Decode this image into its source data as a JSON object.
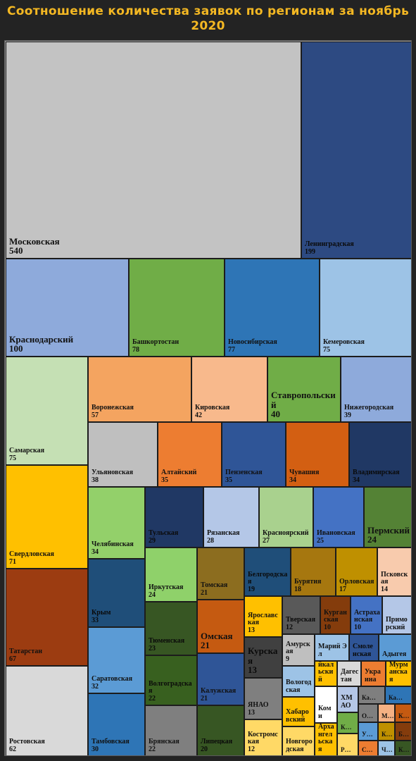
{
  "title": "Соотношение количества заявок по регионам за ноябрь 2020",
  "chart_data": {
    "type": "treemap",
    "title": "Соотношение количества заявок по регионам за ноябрь 2020",
    "items": [
      {
        "name": "Московская",
        "value": 540,
        "color": "#c3c3c3"
      },
      {
        "name": "Ленинградская",
        "value": 199,
        "color": "#2d4a82"
      },
      {
        "name": "Краснодарский",
        "value": 100,
        "color": "#8eaadb"
      },
      {
        "name": "Башкортостан",
        "value": 78,
        "color": "#70ad47"
      },
      {
        "name": "Новосибирская",
        "value": 77,
        "color": "#2e75b6"
      },
      {
        "name": "Кемеровская",
        "value": 75,
        "color": "#9dc3e6"
      },
      {
        "name": "Самарская",
        "value": 75,
        "color": "#c5e0b4"
      },
      {
        "name": "Свердловская",
        "value": 71,
        "color": "#ffc000"
      },
      {
        "name": "Татарстан",
        "value": 67,
        "color": "#9c3c11"
      },
      {
        "name": "Ростовская",
        "value": 62,
        "color": "#d9d9d9"
      },
      {
        "name": "Воронежская",
        "value": 57,
        "color": "#f4a460"
      },
      {
        "name": "Кировская",
        "value": 42,
        "color": "#f8b98c"
      },
      {
        "name": "Ставропольский",
        "value": 40,
        "color": "#70ad47"
      },
      {
        "name": "Нижегородская",
        "value": 39,
        "color": "#8eaadb"
      },
      {
        "name": "Ульяновская",
        "value": 38,
        "color": "#bfbfbf"
      },
      {
        "name": "Алтайский",
        "value": 35,
        "color": "#ed7d31"
      },
      {
        "name": "Пензенская",
        "value": 35,
        "color": "#2f5597"
      },
      {
        "name": "Чувашия",
        "value": 34,
        "color": "#d35f12"
      },
      {
        "name": "Владимирская",
        "value": 34,
        "color": "#203864"
      },
      {
        "name": "Челябинская",
        "value": 34,
        "color": "#93d06a"
      },
      {
        "name": "Крым",
        "value": 33,
        "color": "#1f4e79"
      },
      {
        "name": "Саратовская",
        "value": 32,
        "color": "#5b9bd5"
      },
      {
        "name": "Тамбовская",
        "value": 30,
        "color": "#2e75b6"
      },
      {
        "name": "Тульская",
        "value": 29,
        "color": "#203864"
      },
      {
        "name": "Рязанская",
        "value": 28,
        "color": "#b4c7e7"
      },
      {
        "name": "Красноярский",
        "value": 27,
        "color": "#a9d18e"
      },
      {
        "name": "Ивановская",
        "value": 25,
        "color": "#4472c4"
      },
      {
        "name": "Пермский",
        "value": 24,
        "color": "#548235"
      },
      {
        "name": "Иркутская",
        "value": 24,
        "color": "#8fd16a"
      },
      {
        "name": "Тюменская",
        "value": 23,
        "color": "#375623"
      },
      {
        "name": "Волгоградская",
        "value": 22,
        "color": "#38601f"
      },
      {
        "name": "Брянская",
        "value": 22,
        "color": "#7f7f7f"
      },
      {
        "name": "Томская",
        "value": 21,
        "color": "#8c6d1f"
      },
      {
        "name": "Омская",
        "value": 21,
        "color": "#c55a11"
      },
      {
        "name": "Калужская",
        "value": 21,
        "color": "#2f5597"
      },
      {
        "name": "Липецкая",
        "value": 20,
        "color": "#375623"
      },
      {
        "name": "Белгородская",
        "value": 19,
        "color": "#1f4e79"
      },
      {
        "name": "Бурятия",
        "value": 18,
        "color": "#a6770f"
      },
      {
        "name": "Орловская",
        "value": 17,
        "color": "#bf9000"
      },
      {
        "name": "Псковская",
        "value": 14,
        "color": "#f8cbad"
      },
      {
        "name": "Ярославская",
        "value": 13,
        "color": "#ffc000"
      },
      {
        "name": "Курская",
        "value": 13,
        "color": "#404040"
      },
      {
        "name": "ЯНАО",
        "value": 13,
        "color": "#7f7f7f"
      },
      {
        "name": "Костромская",
        "value": 12,
        "color": "#ffd966"
      },
      {
        "name": "Тверская",
        "value": 12,
        "color": "#595959"
      },
      {
        "name": "Курганская",
        "value": 10,
        "color": "#843c0c"
      },
      {
        "name": "Астраханская",
        "value": 10,
        "color": "#4472c4"
      },
      {
        "name": "Приморский",
        "value": null,
        "color": "#b4c7e7"
      },
      {
        "name": "Амурская",
        "value": 9,
        "color": "#bfbfbf"
      },
      {
        "name": "Марий Эл",
        "value": null,
        "color": "#9dc3e6"
      },
      {
        "name": "Смоленская",
        "value": null,
        "color": "#2f5597"
      },
      {
        "name": "Адыгея",
        "value": null,
        "color": "#5b9bd5"
      },
      {
        "name": "Вологодская",
        "value": null,
        "color": "#9dc3e6"
      },
      {
        "name": "Забайкальский",
        "value": null,
        "color": "#ffc000"
      },
      {
        "name": "Дагестан",
        "value": null,
        "color": "#d9d9d9"
      },
      {
        "name": "Украина",
        "value": null,
        "color": "#ed7d31"
      },
      {
        "name": "Мурманская",
        "value": null,
        "color": "#ffc000"
      },
      {
        "name": "ХМАО",
        "value": null,
        "color": "#b4c7e7"
      },
      {
        "name": "Хабаровский",
        "value": null,
        "color": "#ffc000"
      },
      {
        "name": "Коми",
        "value": null,
        "color": "#ffffff"
      },
      {
        "name": "Новгородская",
        "value": null,
        "color": "#ffd966"
      },
      {
        "name": "Архангельская",
        "value": null,
        "color": "#ffc000"
      }
    ],
    "small_items": [
      {
        "label": "Ка…",
        "color": "#7f7f7f"
      },
      {
        "label": "Ка…",
        "color": "#2e75b6"
      },
      {
        "label": "К…",
        "color": "#70ad47"
      },
      {
        "label": "О…",
        "color": "#7f7f7f"
      },
      {
        "label": "М…",
        "color": "#f4b183"
      },
      {
        "label": "К…",
        "color": "#c55a11"
      },
      {
        "label": "Р…",
        "color": "#ffd966"
      },
      {
        "label": "У…",
        "color": "#5b9bd5"
      },
      {
        "label": "К…",
        "color": "#bf9000"
      },
      {
        "label": "Б…",
        "color": "#843c0c"
      },
      {
        "label": "С…",
        "color": "#ed7d31"
      },
      {
        "label": "Ч…",
        "color": "#9dc3e6"
      },
      {
        "label": "К…",
        "color": "#375623"
      }
    ]
  }
}
